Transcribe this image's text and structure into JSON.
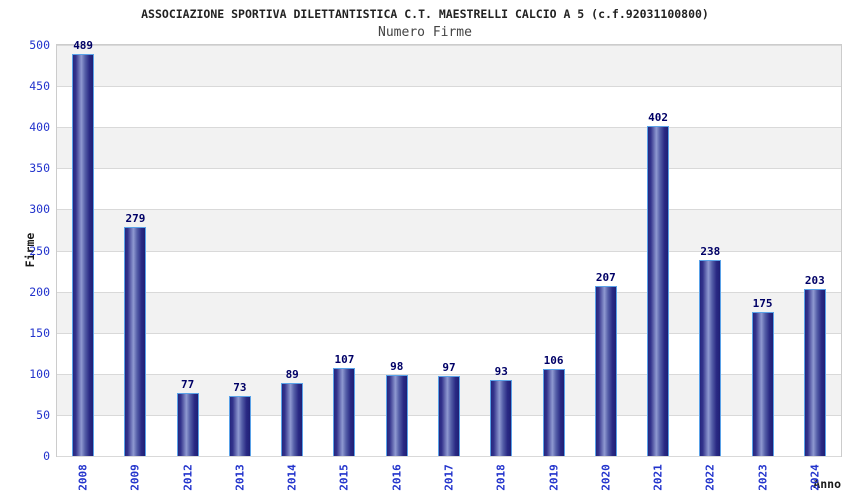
{
  "chart_data": {
    "type": "bar",
    "title": "ASSOCIAZIONE SPORTIVA DILETTANTISTICA C.T. MAESTRELLI CALCIO A 5 (c.f.92031100800)",
    "subtitle": "Numero Firme",
    "xlabel": "Anno",
    "ylabel": "Firme",
    "categories": [
      "2008",
      "2009",
      "2012",
      "2013",
      "2014",
      "2015",
      "2016",
      "2017",
      "2018",
      "2019",
      "2020",
      "2021",
      "2022",
      "2023",
      "2024"
    ],
    "values": [
      489,
      279,
      77,
      73,
      89,
      107,
      98,
      97,
      93,
      106,
      207,
      402,
      238,
      175,
      203
    ],
    "ylim": [
      0,
      500
    ],
    "yticks": [
      0,
      50,
      100,
      150,
      200,
      250,
      300,
      350,
      400,
      450,
      500
    ],
    "grid": "horizontal-bands-alternating",
    "legend": "none",
    "value_labels": "above-bars",
    "colors": {
      "bar_edge": "#26267f",
      "bar_highlight": "#8f99d1",
      "bar_border": "#5aa2e8",
      "axis_tick_label": "#2233cc",
      "value_label": "#000066",
      "band_fill": "#f2f2f2",
      "gridline": "#d9d9d9",
      "plot_border": "#cccccc",
      "title_text": "#222222",
      "subtitle_text": "#444444"
    }
  }
}
